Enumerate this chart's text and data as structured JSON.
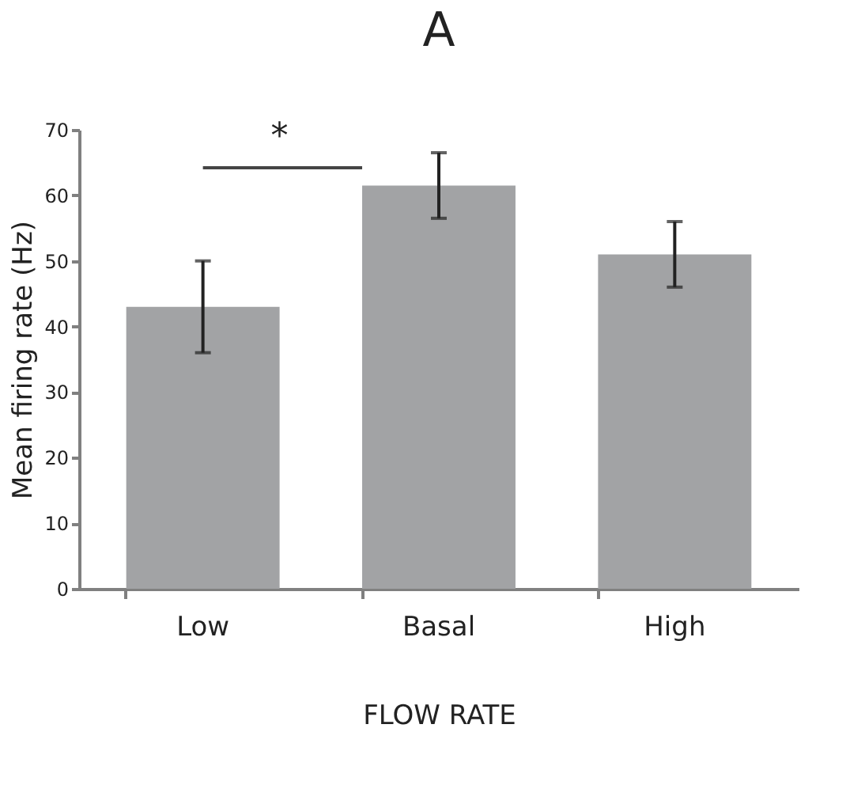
{
  "chart_data": {
    "type": "bar",
    "title": "A",
    "xlabel": "FLOW RATE",
    "ylabel": "Mean firing rate (Hz)",
    "categories": [
      "Low",
      "Basal",
      "High"
    ],
    "values": [
      43,
      61.5,
      51
    ],
    "errors": [
      [
        36,
        50
      ],
      [
        56.5,
        66.5
      ],
      [
        46,
        56
      ]
    ],
    "color": "#a2a3a5",
    "ylim": [
      0,
      70
    ],
    "yticks": [
      0,
      10,
      20,
      30,
      40,
      50,
      60,
      70
    ],
    "grid": false,
    "annotations": [
      "*"
    ]
  }
}
